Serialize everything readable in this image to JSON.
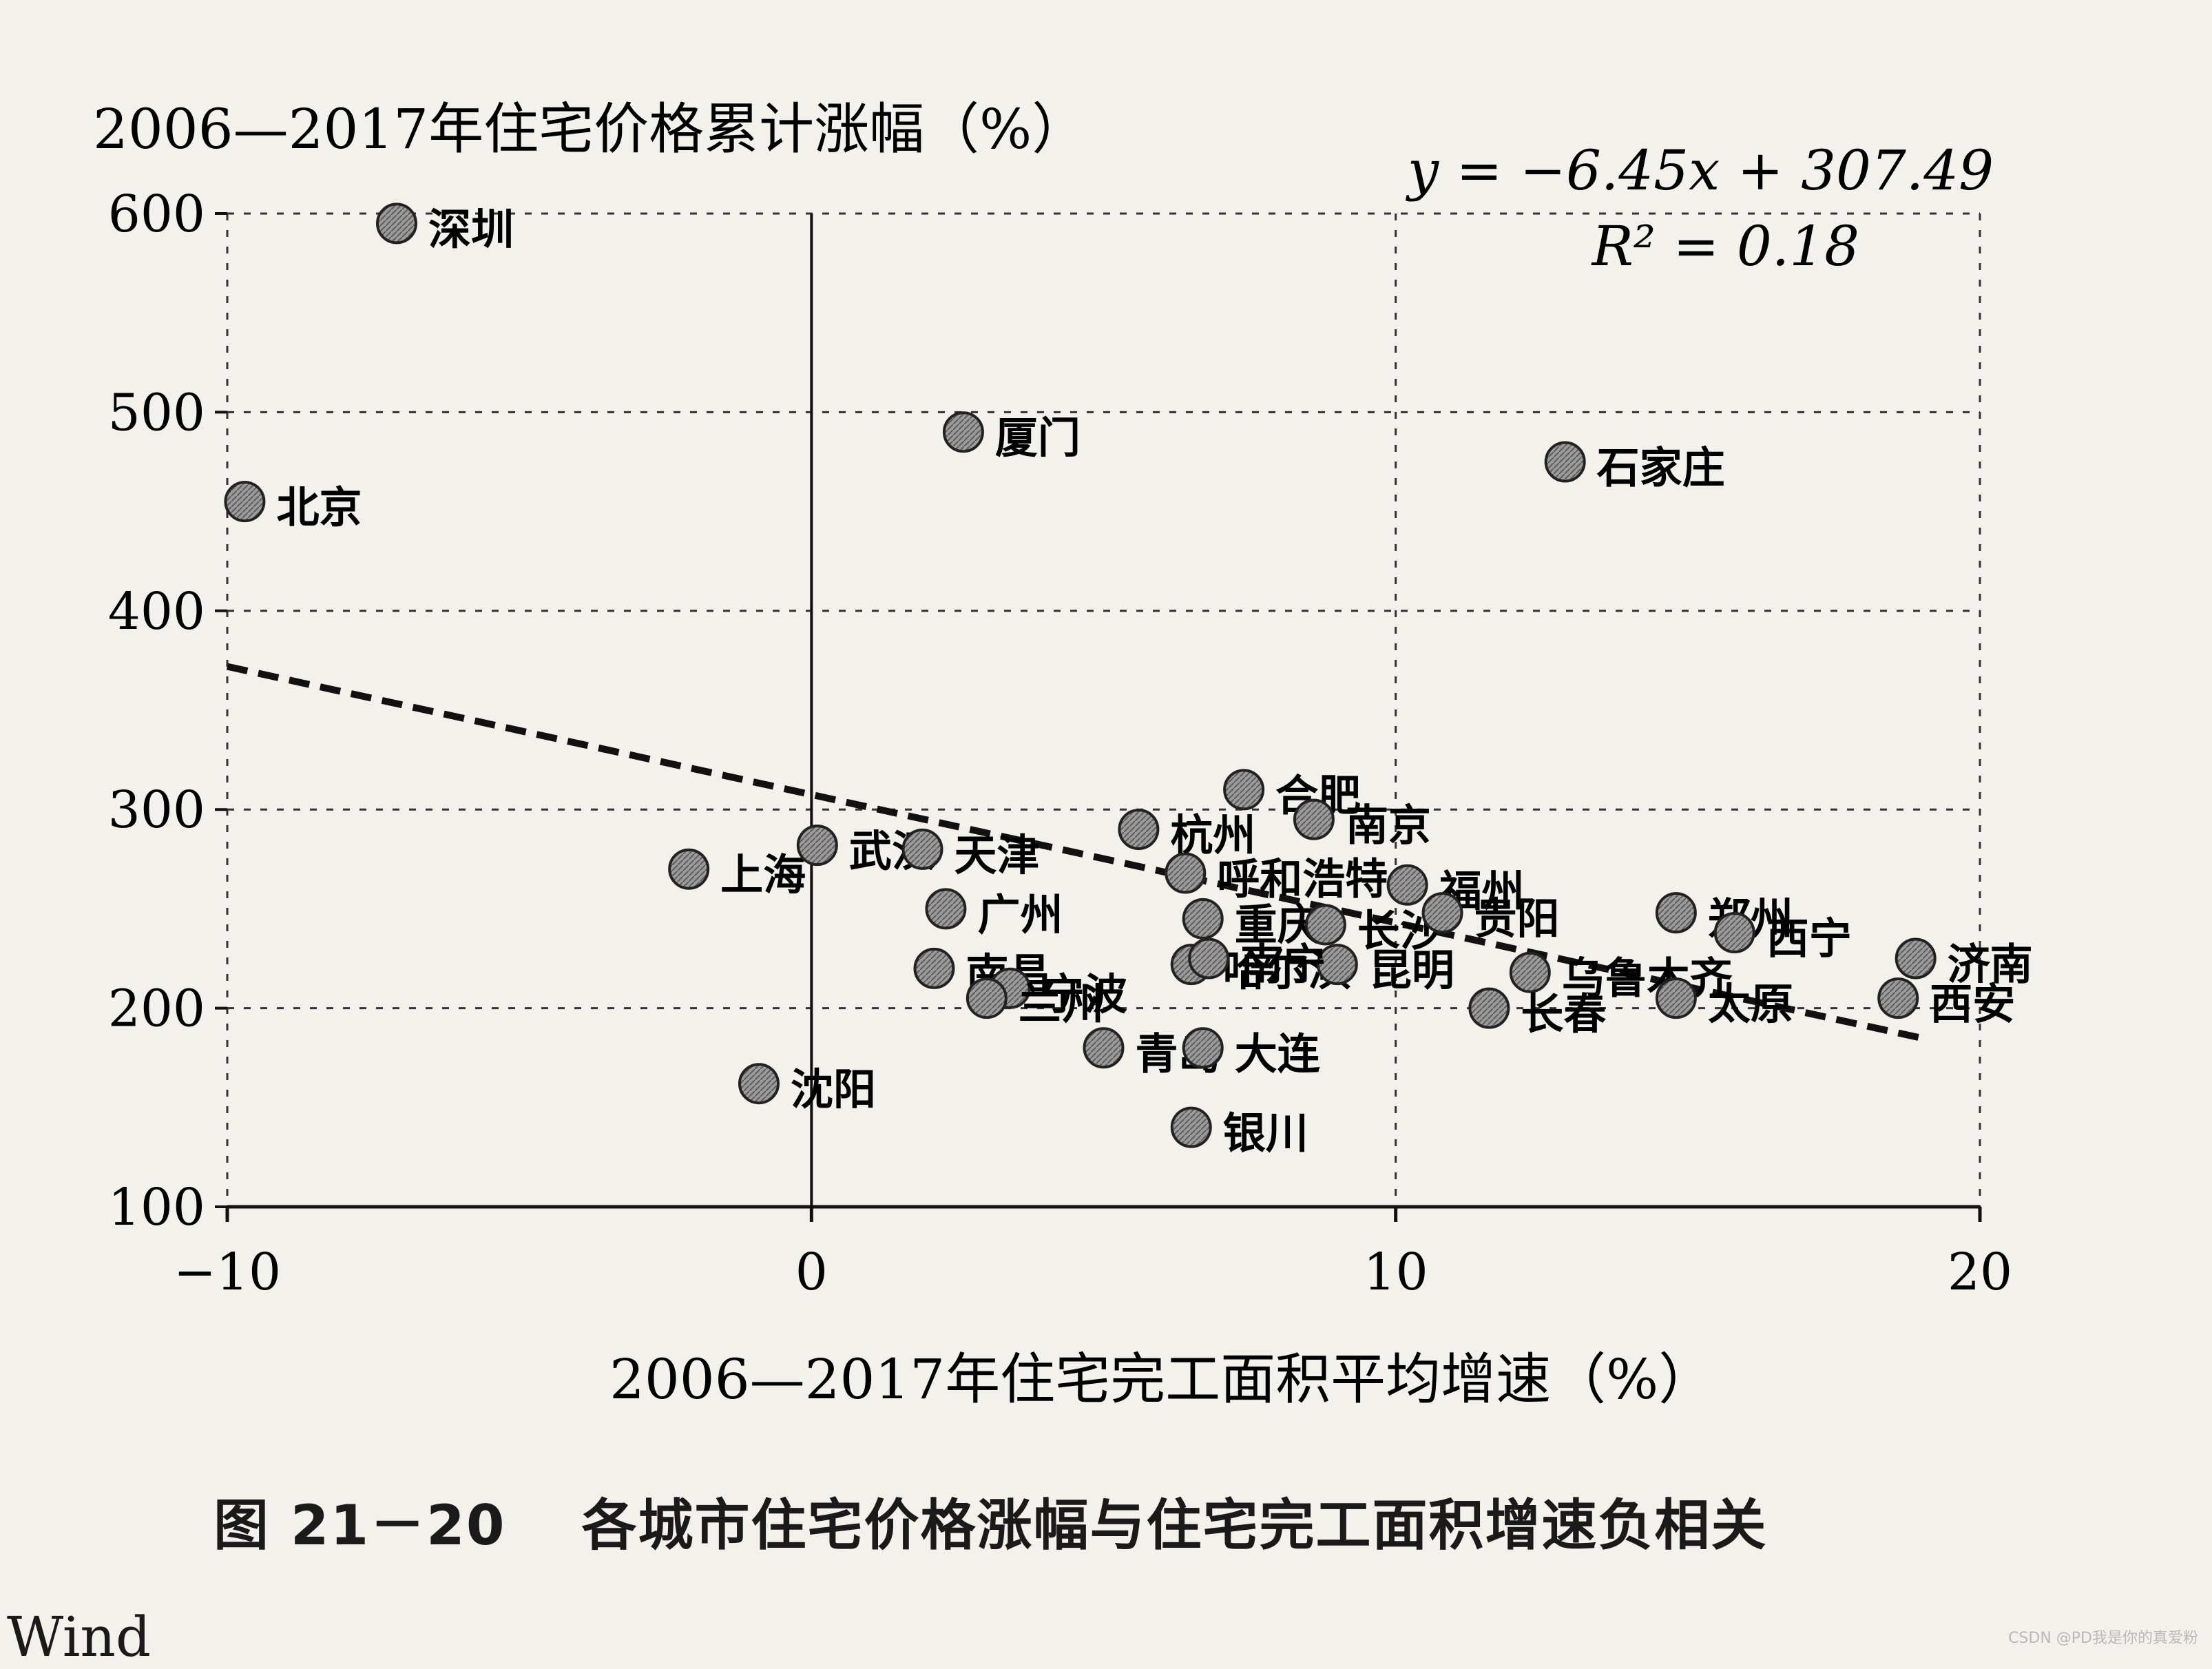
{
  "chart_data": {
    "type": "scatter",
    "title": "",
    "ylabel": "2006—2017年住宅价格累计涨幅（%）",
    "xlabel": "2006—2017年住宅完工面积平均增速（%）",
    "xlim": [
      -10,
      20
    ],
    "ylim": [
      100,
      600
    ],
    "xticks": [
      "−10",
      "0",
      "10",
      "20"
    ],
    "yticks": [
      "100",
      "200",
      "300",
      "400",
      "500",
      "600"
    ],
    "grid": true,
    "equation": "y = −6.45x + 307.49",
    "r_squared": "R² = 0.18",
    "trendline": {
      "slope": -6.45,
      "intercept": 307.49
    },
    "points": [
      {
        "label": "深圳",
        "x": -7.1,
        "y": 595
      },
      {
        "label": "北京",
        "x": -9.7,
        "y": 455
      },
      {
        "label": "厦门",
        "x": 2.6,
        "y": 490
      },
      {
        "label": "石家庄",
        "x": 12.9,
        "y": 475
      },
      {
        "label": "上海",
        "x": -2.1,
        "y": 270
      },
      {
        "label": "武汉",
        "x": 0.1,
        "y": 282
      },
      {
        "label": "天津",
        "x": 1.9,
        "y": 280
      },
      {
        "label": "广州",
        "x": 2.3,
        "y": 250
      },
      {
        "label": "南昌",
        "x": 2.1,
        "y": 220
      },
      {
        "label": "宁波",
        "x": 3.4,
        "y": 210
      },
      {
        "label": "兰州",
        "x": 3.0,
        "y": 205
      },
      {
        "label": "沈阳",
        "x": -0.9,
        "y": 162
      },
      {
        "label": "合肥",
        "x": 7.4,
        "y": 310
      },
      {
        "label": "南京",
        "x": 8.6,
        "y": 295
      },
      {
        "label": "杭州",
        "x": 5.6,
        "y": 290
      },
      {
        "label": "呼和浩特",
        "x": 6.4,
        "y": 268
      },
      {
        "label": "重庆",
        "x": 6.7,
        "y": 245
      },
      {
        "label": "长沙",
        "x": 8.8,
        "y": 242
      },
      {
        "label": "福州",
        "x": 10.2,
        "y": 262
      },
      {
        "label": "贵阳",
        "x": 10.8,
        "y": 248
      },
      {
        "label": "哈尔滨",
        "x": 6.5,
        "y": 222
      },
      {
        "label": "昆明",
        "x": 9.0,
        "y": 222
      },
      {
        "label": "南宁",
        "x": 6.8,
        "y": 225
      },
      {
        "label": "青岛",
        "x": 5.0,
        "y": 180
      },
      {
        "label": "大连",
        "x": 6.7,
        "y": 180
      },
      {
        "label": "银川",
        "x": 6.5,
        "y": 140
      },
      {
        "label": "乌鲁木齐",
        "x": 12.3,
        "y": 218
      },
      {
        "label": "长春",
        "x": 11.6,
        "y": 200
      },
      {
        "label": "郑州",
        "x": 14.8,
        "y": 248
      },
      {
        "label": "西宁",
        "x": 15.8,
        "y": 238
      },
      {
        "label": "太原",
        "x": 14.8,
        "y": 205
      },
      {
        "label": "济南",
        "x": 18.9,
        "y": 225
      },
      {
        "label": "西安",
        "x": 18.6,
        "y": 205
      }
    ]
  },
  "caption": {
    "figure_number": "图 21－20",
    "text": "各城市住宅价格涨幅与住宅完工面积增速负相关"
  },
  "source": "Wind",
  "watermark": "CSDN @PD我是你的真爱粉"
}
